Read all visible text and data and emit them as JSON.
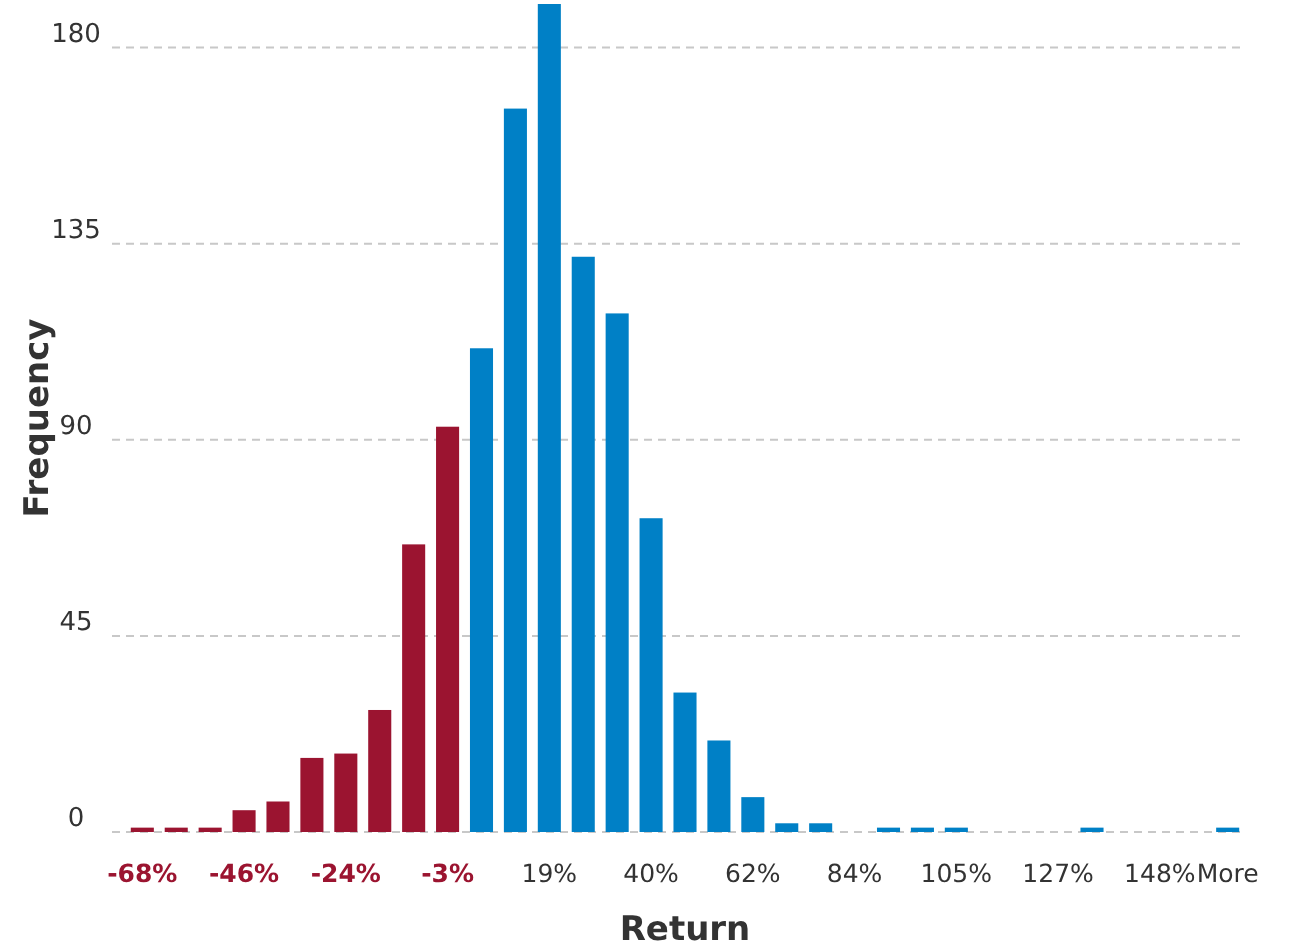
{
  "chart_data": {
    "type": "bar",
    "xlabel": "Return",
    "ylabel": "Frequency",
    "categories": [
      "-68%",
      null,
      null,
      "-46%",
      null,
      null,
      "-24%",
      null,
      null,
      "-3%",
      null,
      null,
      "19%",
      null,
      null,
      "40%",
      null,
      null,
      "62%",
      null,
      null,
      "84%",
      null,
      null,
      "105%",
      null,
      null,
      "127%",
      null,
      null,
      "148%",
      null,
      "More"
    ],
    "values": [
      1,
      1,
      1,
      5,
      7,
      17,
      18,
      28,
      66,
      93,
      111,
      166,
      190,
      132,
      119,
      72,
      32,
      21,
      8,
      2,
      2,
      0,
      1,
      1,
      1,
      0,
      0,
      0,
      1,
      0,
      0,
      0,
      1
    ],
    "colors": [
      "#9b1430",
      "#9b1430",
      "#9b1430",
      "#9b1430",
      "#9b1430",
      "#9b1430",
      "#9b1430",
      "#9b1430",
      "#9b1430",
      "#9b1430",
      "#0080c6",
      "#0080c6",
      "#0080c6",
      "#0080c6",
      "#0080c6",
      "#0080c6",
      "#0080c6",
      "#0080c6",
      "#0080c6",
      "#0080c6",
      "#0080c6",
      "#0080c6",
      "#0080c6",
      "#0080c6",
      "#0080c6",
      "#0080c6",
      "#0080c6",
      "#0080c6",
      "#0080c6",
      "#0080c6",
      "#0080c6",
      "#0080c6",
      "#0080c6"
    ],
    "ylim": [
      0,
      190
    ],
    "yticks": [
      0,
      45,
      90,
      135,
      180
    ],
    "grid": "y"
  }
}
